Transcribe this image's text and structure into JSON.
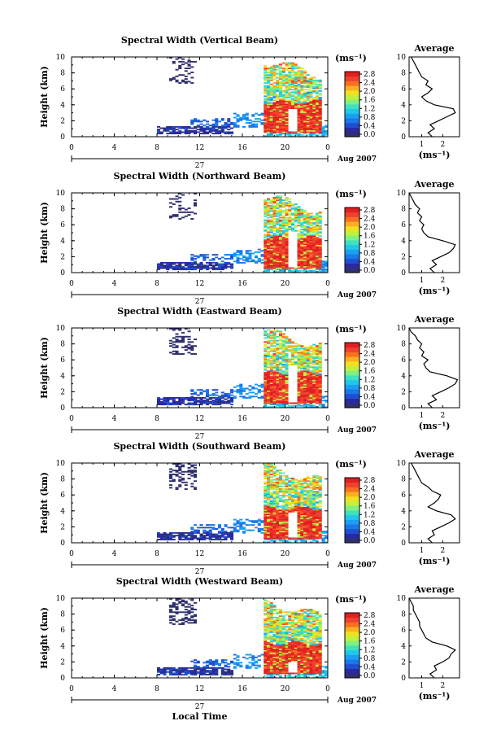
{
  "figure": {
    "date_label": "Aug 2007",
    "day_label": "27",
    "xlabel_bottom": "Local Time",
    "unit_label": "(ms⁻¹)",
    "average_title": "Average",
    "average_xlabel": "(ms⁻¹)"
  },
  "colors": {
    "scale": [
      "#303070",
      "#2a2aa0",
      "#1f4fd0",
      "#1a78e8",
      "#1aa0f0",
      "#20c8e8",
      "#40e0c0",
      "#80f080",
      "#c0f040",
      "#f0e020",
      "#f8b020",
      "#f87020",
      "#f04030",
      "#e02020"
    ]
  },
  "chart_data": [
    {
      "type": "heatmap",
      "title": "Spectral Width (Vertical Beam)",
      "ylabel": "Height (km)",
      "x_ticks": [
        "0",
        "4",
        "8",
        "12",
        "16",
        "20",
        "0"
      ],
      "y_ticks": [
        "0",
        "2",
        "4",
        "6",
        "8",
        "10"
      ],
      "xlim": [
        0,
        24
      ],
      "ylim": [
        0,
        10
      ],
      "colorbar": {
        "ticks": [
          "0.0",
          "0.4",
          "0.8",
          "1.2",
          "1.6",
          "2.0",
          "2.4",
          "2.8"
        ],
        "range": [
          0,
          2.8
        ]
      },
      "average": {
        "x_ticks": [
          "1",
          "2"
        ],
        "y_ticks": [
          "0",
          "2",
          "4",
          "6",
          "8",
          "10"
        ],
        "xlim": [
          0.4,
          2.8
        ],
        "profile": [
          [
            1.5,
            0
          ],
          [
            1.3,
            0.5
          ],
          [
            1.6,
            1
          ],
          [
            1.4,
            1.5
          ],
          [
            1.8,
            2
          ],
          [
            2.2,
            2.5
          ],
          [
            2.6,
            3
          ],
          [
            2.5,
            3.5
          ],
          [
            1.6,
            4
          ],
          [
            1.2,
            4.5
          ],
          [
            1.0,
            5
          ],
          [
            1.3,
            5.5
          ],
          [
            1.5,
            6
          ],
          [
            1.2,
            6.5
          ],
          [
            1.3,
            7
          ],
          [
            1.0,
            7.5
          ],
          [
            0.9,
            8
          ],
          [
            0.8,
            8.5
          ],
          [
            0.7,
            9
          ],
          [
            0.6,
            9.5
          ],
          [
            0.5,
            10
          ]
        ]
      }
    },
    {
      "type": "heatmap",
      "title": "Spectral Width (Northward Beam)",
      "ylabel": "Height (km)",
      "x_ticks": [
        "0",
        "4",
        "8",
        "12",
        "16",
        "20",
        "0"
      ],
      "y_ticks": [
        "0",
        "2",
        "4",
        "6",
        "8",
        "10"
      ],
      "xlim": [
        0,
        24
      ],
      "ylim": [
        0,
        10
      ],
      "colorbar": {
        "ticks": [
          "0.0",
          "0.4",
          "0.8",
          "1.2",
          "1.6",
          "2.0",
          "2.4",
          "2.8"
        ],
        "range": [
          0,
          2.8
        ]
      },
      "average": {
        "x_ticks": [
          "1",
          "2"
        ],
        "y_ticks": [
          "0",
          "2",
          "4",
          "6",
          "8",
          "10"
        ],
        "xlim": [
          0.4,
          2.8
        ],
        "profile": [
          [
            1.6,
            0
          ],
          [
            1.4,
            0.5
          ],
          [
            1.7,
            1
          ],
          [
            1.5,
            1.5
          ],
          [
            1.9,
            2
          ],
          [
            2.3,
            2.5
          ],
          [
            2.5,
            3
          ],
          [
            2.6,
            3.5
          ],
          [
            2.0,
            4
          ],
          [
            1.3,
            4.5
          ],
          [
            1.1,
            5
          ],
          [
            1.0,
            5.5
          ],
          [
            1.1,
            6
          ],
          [
            0.9,
            6.5
          ],
          [
            1.0,
            7
          ],
          [
            0.8,
            7.5
          ],
          [
            0.9,
            8
          ],
          [
            0.7,
            8.5
          ],
          [
            0.6,
            9
          ],
          [
            0.5,
            9.5
          ],
          [
            0.4,
            10
          ]
        ]
      }
    },
    {
      "type": "heatmap",
      "title": "Spectral Width (Eastward Beam)",
      "ylabel": "Height (km)",
      "x_ticks": [
        "0",
        "4",
        "8",
        "12",
        "16",
        "20",
        "0"
      ],
      "y_ticks": [
        "0",
        "2",
        "4",
        "6",
        "8",
        "10"
      ],
      "xlim": [
        0,
        24
      ],
      "ylim": [
        0,
        10
      ],
      "colorbar": {
        "ticks": [
          "0.0",
          "0.4",
          "0.8",
          "1.2",
          "1.6",
          "2.0",
          "2.4",
          "2.8"
        ],
        "range": [
          0,
          2.8
        ]
      },
      "average": {
        "x_ticks": [
          "1",
          "2"
        ],
        "y_ticks": [
          "0",
          "2",
          "4",
          "6",
          "8",
          "10"
        ],
        "xlim": [
          0.4,
          2.8
        ],
        "profile": [
          [
            1.5,
            0
          ],
          [
            1.3,
            0.5
          ],
          [
            1.7,
            1
          ],
          [
            1.5,
            1.5
          ],
          [
            1.9,
            2
          ],
          [
            2.3,
            2.5
          ],
          [
            2.6,
            3
          ],
          [
            2.7,
            3.5
          ],
          [
            2.2,
            4
          ],
          [
            1.4,
            4.5
          ],
          [
            1.2,
            5
          ],
          [
            1.1,
            5.5
          ],
          [
            1.3,
            6
          ],
          [
            1.0,
            6.5
          ],
          [
            1.1,
            7
          ],
          [
            0.9,
            7.5
          ],
          [
            1.0,
            8
          ],
          [
            0.8,
            8.5
          ],
          [
            0.7,
            9
          ],
          [
            0.5,
            9.5
          ],
          [
            0.4,
            10
          ]
        ]
      }
    },
    {
      "type": "heatmap",
      "title": "Spectral Width (Southward Beam)",
      "ylabel": "Height (km)",
      "x_ticks": [
        "0",
        "4",
        "8",
        "12",
        "16",
        "20",
        "0"
      ],
      "y_ticks": [
        "0",
        "2",
        "4",
        "6",
        "8",
        "10"
      ],
      "xlim": [
        0,
        24
      ],
      "ylim": [
        0,
        10
      ],
      "colorbar": {
        "ticks": [
          "0.0",
          "0.4",
          "0.8",
          "1.2",
          "1.6",
          "2.0",
          "2.4",
          "2.8"
        ],
        "range": [
          0,
          2.8
        ]
      },
      "average": {
        "x_ticks": [
          "1",
          "2"
        ],
        "y_ticks": [
          "0",
          "2",
          "4",
          "6",
          "8",
          "10"
        ],
        "xlim": [
          0.4,
          2.8
        ],
        "profile": [
          [
            1.5,
            0
          ],
          [
            1.3,
            0.5
          ],
          [
            1.6,
            1
          ],
          [
            1.5,
            1.5
          ],
          [
            1.9,
            2
          ],
          [
            2.3,
            2.5
          ],
          [
            2.6,
            3
          ],
          [
            2.4,
            3.5
          ],
          [
            1.7,
            4
          ],
          [
            1.3,
            4.5
          ],
          [
            1.6,
            5
          ],
          [
            1.8,
            5.5
          ],
          [
            1.9,
            6
          ],
          [
            1.5,
            6.5
          ],
          [
            1.3,
            7
          ],
          [
            1.0,
            7.5
          ],
          [
            0.9,
            8
          ],
          [
            0.8,
            8.5
          ],
          [
            0.7,
            9
          ],
          [
            0.6,
            9.5
          ],
          [
            0.5,
            10
          ]
        ]
      }
    },
    {
      "type": "heatmap",
      "title": "Spectral Width (Westward Beam)",
      "ylabel": "Height (km)",
      "xlabel": "Local Time",
      "x_ticks": [
        "0",
        "4",
        "8",
        "12",
        "16",
        "20",
        "0"
      ],
      "y_ticks": [
        "0",
        "2",
        "4",
        "6",
        "8",
        "10"
      ],
      "xlim": [
        0,
        24
      ],
      "ylim": [
        0,
        10
      ],
      "colorbar": {
        "ticks": [
          "0.0",
          "0.4",
          "0.8",
          "1.2",
          "1.6",
          "2.0",
          "2.4",
          "2.8"
        ],
        "range": [
          0,
          2.8
        ]
      },
      "average": {
        "x_ticks": [
          "1",
          "2"
        ],
        "y_ticks": [
          "0",
          "2",
          "4",
          "6",
          "8",
          "10"
        ],
        "xlim": [
          0.4,
          2.8
        ],
        "profile": [
          [
            1.6,
            0
          ],
          [
            1.4,
            0.5
          ],
          [
            1.7,
            1
          ],
          [
            1.6,
            1.5
          ],
          [
            2.0,
            2
          ],
          [
            2.3,
            2.5
          ],
          [
            2.4,
            3
          ],
          [
            2.6,
            3.5
          ],
          [
            2.2,
            4
          ],
          [
            1.5,
            4.5
          ],
          [
            1.2,
            5
          ],
          [
            1.1,
            5.5
          ],
          [
            1.0,
            6
          ],
          [
            0.9,
            6.5
          ],
          [
            0.9,
            7
          ],
          [
            0.8,
            7.5
          ],
          [
            0.7,
            8
          ],
          [
            0.6,
            8.5
          ],
          [
            0.6,
            9
          ],
          [
            0.5,
            9.5
          ],
          [
            0.4,
            10
          ]
        ]
      }
    }
  ]
}
